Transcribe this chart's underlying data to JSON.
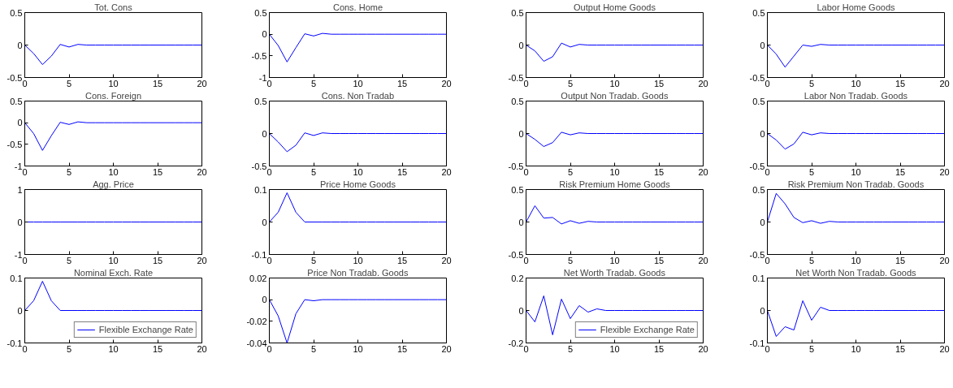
{
  "chart_data": [
    {
      "type": "line",
      "title": "Tot. Cons",
      "x": [
        0,
        1,
        2,
        3,
        4,
        5,
        6,
        7,
        8,
        9,
        10,
        11,
        12,
        13,
        14,
        15,
        16,
        17,
        18,
        19,
        20
      ],
      "xlim": [
        0,
        20
      ],
      "xticks": [
        0,
        5,
        10,
        15,
        20
      ],
      "ylim": [
        -0.5,
        0.5
      ],
      "yticks": [
        -0.5,
        0,
        0.5
      ],
      "series": [
        {
          "color": "#0000ff",
          "values": [
            0,
            -0.13,
            -0.3,
            -0.17,
            0.01,
            -0.03,
            0.01,
            0,
            0,
            0,
            0,
            0,
            0,
            0,
            0,
            0,
            0,
            0,
            0,
            0,
            0
          ]
        }
      ]
    },
    {
      "type": "line",
      "title": "Cons. Home",
      "x": [
        0,
        1,
        2,
        3,
        4,
        5,
        6,
        7,
        8,
        9,
        10,
        11,
        12,
        13,
        14,
        15,
        16,
        17,
        18,
        19,
        20
      ],
      "xlim": [
        0,
        20
      ],
      "xticks": [
        0,
        5,
        10,
        15,
        20
      ],
      "ylim": [
        -1,
        0.5
      ],
      "yticks": [
        -1,
        -0.5,
        0,
        0.5
      ],
      "series": [
        {
          "color": "#0000ff",
          "values": [
            0,
            -0.26,
            -0.64,
            -0.31,
            0.01,
            -0.04,
            0.02,
            0,
            0,
            0,
            0,
            0,
            0,
            0,
            0,
            0,
            0,
            0,
            0,
            0,
            0
          ]
        }
      ]
    },
    {
      "type": "line",
      "title": "Output Home Goods",
      "x": [
        0,
        1,
        2,
        3,
        4,
        5,
        6,
        7,
        8,
        9,
        10,
        11,
        12,
        13,
        14,
        15,
        16,
        17,
        18,
        19,
        20
      ],
      "xlim": [
        0,
        20
      ],
      "xticks": [
        0,
        5,
        10,
        15,
        20
      ],
      "ylim": [
        -0.5,
        0.5
      ],
      "yticks": [
        -0.5,
        0,
        0.5
      ],
      "series": [
        {
          "color": "#0000ff",
          "values": [
            0,
            -0.09,
            -0.25,
            -0.18,
            0.03,
            -0.03,
            0.01,
            0,
            0,
            0,
            0,
            0,
            0,
            0,
            0,
            0,
            0,
            0,
            0,
            0,
            0
          ]
        }
      ]
    },
    {
      "type": "line",
      "title": "Labor Home Goods",
      "x": [
        0,
        1,
        2,
        3,
        4,
        5,
        6,
        7,
        8,
        9,
        10,
        11,
        12,
        13,
        14,
        15,
        16,
        17,
        18,
        19,
        20
      ],
      "xlim": [
        0,
        20
      ],
      "xticks": [
        0,
        5,
        10,
        15,
        20
      ],
      "ylim": [
        -0.5,
        0.5
      ],
      "yticks": [
        -0.5,
        0,
        0.5
      ],
      "series": [
        {
          "color": "#0000ff",
          "values": [
            0,
            -0.14,
            -0.34,
            -0.17,
            0,
            -0.02,
            0.01,
            0,
            0,
            0,
            0,
            0,
            0,
            0,
            0,
            0,
            0,
            0,
            0,
            0,
            0
          ]
        }
      ]
    },
    {
      "type": "line",
      "title": "Cons. Foreign",
      "x": [
        0,
        1,
        2,
        3,
        4,
        5,
        6,
        7,
        8,
        9,
        10,
        11,
        12,
        13,
        14,
        15,
        16,
        17,
        18,
        19,
        20
      ],
      "xlim": [
        0,
        20
      ],
      "xticks": [
        0,
        5,
        10,
        15,
        20
      ],
      "ylim": [
        -1,
        0.5
      ],
      "yticks": [
        -1,
        -0.5,
        0,
        0.5
      ],
      "series": [
        {
          "color": "#0000ff",
          "values": [
            0,
            -0.25,
            -0.64,
            -0.3,
            0.01,
            -0.04,
            0.02,
            0,
            0,
            0,
            0,
            0,
            0,
            0,
            0,
            0,
            0,
            0,
            0,
            0,
            0
          ]
        }
      ]
    },
    {
      "type": "line",
      "title": "Cons. Non Tradab",
      "x": [
        0,
        1,
        2,
        3,
        4,
        5,
        6,
        7,
        8,
        9,
        10,
        11,
        12,
        13,
        14,
        15,
        16,
        17,
        18,
        19,
        20
      ],
      "xlim": [
        0,
        20
      ],
      "xticks": [
        0,
        5,
        10,
        15,
        20
      ],
      "ylim": [
        -0.5,
        0.5
      ],
      "yticks": [
        -0.5,
        0,
        0.5
      ],
      "series": [
        {
          "color": "#0000ff",
          "values": [
            0,
            -0.13,
            -0.28,
            -0.18,
            0.01,
            -0.03,
            0.01,
            0,
            0,
            0,
            0,
            0,
            0,
            0,
            0,
            0,
            0,
            0,
            0,
            0,
            0
          ]
        }
      ]
    },
    {
      "type": "line",
      "title": "Output Non Tradab. Goods",
      "x": [
        0,
        1,
        2,
        3,
        4,
        5,
        6,
        7,
        8,
        9,
        10,
        11,
        12,
        13,
        14,
        15,
        16,
        17,
        18,
        19,
        20
      ],
      "xlim": [
        0,
        20
      ],
      "xticks": [
        0,
        5,
        10,
        15,
        20
      ],
      "ylim": [
        -0.5,
        0.5
      ],
      "yticks": [
        -0.5,
        0,
        0.5
      ],
      "series": [
        {
          "color": "#0000ff",
          "values": [
            0,
            -0.09,
            -0.2,
            -0.14,
            0.02,
            -0.02,
            0.01,
            0,
            0,
            0,
            0,
            0,
            0,
            0,
            0,
            0,
            0,
            0,
            0,
            0,
            0
          ]
        }
      ]
    },
    {
      "type": "line",
      "title": "Labor Non Tradab. Goods",
      "x": [
        0,
        1,
        2,
        3,
        4,
        5,
        6,
        7,
        8,
        9,
        10,
        11,
        12,
        13,
        14,
        15,
        16,
        17,
        18,
        19,
        20
      ],
      "xlim": [
        0,
        20
      ],
      "xticks": [
        0,
        5,
        10,
        15,
        20
      ],
      "ylim": [
        -0.5,
        0.5
      ],
      "yticks": [
        -0.5,
        0,
        0.5
      ],
      "series": [
        {
          "color": "#0000ff",
          "values": [
            0,
            -0.1,
            -0.24,
            -0.16,
            0.02,
            -0.02,
            0.01,
            0,
            0,
            0,
            0,
            0,
            0,
            0,
            0,
            0,
            0,
            0,
            0,
            0,
            0
          ]
        }
      ]
    },
    {
      "type": "line",
      "title": "Agg. Price",
      "x": [
        0,
        1,
        2,
        3,
        4,
        5,
        6,
        7,
        8,
        9,
        10,
        11,
        12,
        13,
        14,
        15,
        16,
        17,
        18,
        19,
        20
      ],
      "xlim": [
        0,
        20
      ],
      "xticks": [
        0,
        5,
        10,
        15,
        20
      ],
      "ylim": [
        -1,
        1
      ],
      "yticks": [
        -1,
        0,
        1
      ],
      "series": [
        {
          "color": "#0000ff",
          "values": [
            0,
            0,
            0,
            0,
            0,
            0,
            0,
            0,
            0,
            0,
            0,
            0,
            0,
            0,
            0,
            0,
            0,
            0,
            0,
            0,
            0
          ]
        }
      ]
    },
    {
      "type": "line",
      "title": "Price Home Goods",
      "x": [
        0,
        1,
        2,
        3,
        4,
        5,
        6,
        7,
        8,
        9,
        10,
        11,
        12,
        13,
        14,
        15,
        16,
        17,
        18,
        19,
        20
      ],
      "xlim": [
        0,
        20
      ],
      "xticks": [
        0,
        5,
        10,
        15,
        20
      ],
      "ylim": [
        -0.1,
        0.1
      ],
      "yticks": [
        -0.1,
        0,
        0.1
      ],
      "series": [
        {
          "color": "#0000ff",
          "values": [
            0,
            0.03,
            0.09,
            0.03,
            0,
            0,
            0,
            0,
            0,
            0,
            0,
            0,
            0,
            0,
            0,
            0,
            0,
            0,
            0,
            0,
            0
          ]
        }
      ]
    },
    {
      "type": "line",
      "title": "Risk Premium Home Goods",
      "x": [
        0,
        1,
        2,
        3,
        4,
        5,
        6,
        7,
        8,
        9,
        10,
        11,
        12,
        13,
        14,
        15,
        16,
        17,
        18,
        19,
        20
      ],
      "xlim": [
        0,
        20
      ],
      "xticks": [
        0,
        5,
        10,
        15,
        20
      ],
      "ylim": [
        -0.5,
        0.5
      ],
      "yticks": [
        -0.5,
        0,
        0.5
      ],
      "series": [
        {
          "color": "#0000ff",
          "values": [
            0,
            0.25,
            0.06,
            0.07,
            -0.03,
            0.02,
            -0.02,
            0.01,
            0,
            0,
            0,
            0,
            0,
            0,
            0,
            0,
            0,
            0,
            0,
            0,
            0
          ]
        }
      ]
    },
    {
      "type": "line",
      "title": "Risk Premium Non Tradab. Goods",
      "x": [
        0,
        1,
        2,
        3,
        4,
        5,
        6,
        7,
        8,
        9,
        10,
        11,
        12,
        13,
        14,
        15,
        16,
        17,
        18,
        19,
        20
      ],
      "xlim": [
        0,
        20
      ],
      "xticks": [
        0,
        5,
        10,
        15,
        20
      ],
      "ylim": [
        -0.5,
        0.5
      ],
      "yticks": [
        -0.5,
        0,
        0.5
      ],
      "series": [
        {
          "color": "#0000ff",
          "values": [
            0,
            0.44,
            0.28,
            0.07,
            -0.01,
            0.02,
            -0.02,
            0.01,
            0,
            0,
            0,
            0,
            0,
            0,
            0,
            0,
            0,
            0,
            0,
            0,
            0
          ]
        }
      ]
    },
    {
      "type": "line",
      "title": "Nominal Exch. Rate",
      "x": [
        0,
        1,
        2,
        3,
        4,
        5,
        6,
        7,
        8,
        9,
        10,
        11,
        12,
        13,
        14,
        15,
        16,
        17,
        18,
        19,
        20
      ],
      "xlim": [
        0,
        20
      ],
      "xticks": [
        0,
        5,
        10,
        15,
        20
      ],
      "ylim": [
        -0.1,
        0.1
      ],
      "yticks": [
        -0.1,
        0,
        0.1
      ],
      "legend": "bottom right",
      "series": [
        {
          "name": "Flexible Exchange Rate",
          "color": "#0000ff",
          "values": [
            0,
            0.03,
            0.09,
            0.03,
            0,
            0,
            0,
            0,
            0,
            0,
            0,
            0,
            0,
            0,
            0,
            0,
            0,
            0,
            0,
            0,
            0
          ]
        }
      ]
    },
    {
      "type": "line",
      "title": "Price Non Tradab. Goods",
      "x": [
        0,
        1,
        2,
        3,
        4,
        5,
        6,
        7,
        8,
        9,
        10,
        11,
        12,
        13,
        14,
        15,
        16,
        17,
        18,
        19,
        20
      ],
      "xlim": [
        0,
        20
      ],
      "xticks": [
        0,
        5,
        10,
        15,
        20
      ],
      "ylim": [
        -0.04,
        0.02
      ],
      "yticks": [
        -0.04,
        -0.02,
        0,
        0.02
      ],
      "series": [
        {
          "color": "#0000ff",
          "values": [
            0,
            -0.015,
            -0.04,
            -0.013,
            0,
            -0.001,
            0,
            0,
            0,
            0,
            0,
            0,
            0,
            0,
            0,
            0,
            0,
            0,
            0,
            0,
            0
          ]
        }
      ]
    },
    {
      "type": "line",
      "title": "Net Worth Tradab. Goods",
      "x": [
        0,
        1,
        2,
        3,
        4,
        5,
        6,
        7,
        8,
        9,
        10,
        11,
        12,
        13,
        14,
        15,
        16,
        17,
        18,
        19,
        20
      ],
      "xlim": [
        0,
        20
      ],
      "xticks": [
        0,
        5,
        10,
        15,
        20
      ],
      "ylim": [
        -0.2,
        0.2
      ],
      "yticks": [
        -0.2,
        0,
        0.2
      ],
      "legend": "bottom right",
      "series": [
        {
          "name": "Flexible Exchange Rate",
          "color": "#0000ff",
          "values": [
            0,
            -0.07,
            0.09,
            -0.15,
            0.07,
            -0.05,
            0.03,
            -0.01,
            0.01,
            0,
            0,
            0,
            0,
            0,
            0,
            0,
            0,
            0,
            0,
            0,
            0
          ]
        }
      ]
    },
    {
      "type": "line",
      "title": "Net Worth Non Tradab. Goods",
      "x": [
        0,
        1,
        2,
        3,
        4,
        5,
        6,
        7,
        8,
        9,
        10,
        11,
        12,
        13,
        14,
        15,
        16,
        17,
        18,
        19,
        20
      ],
      "xlim": [
        0,
        20
      ],
      "xticks": [
        0,
        5,
        10,
        15,
        20
      ],
      "ylim": [
        -0.1,
        0.1
      ],
      "yticks": [
        -0.1,
        0,
        0.1
      ],
      "series": [
        {
          "color": "#0000ff",
          "values": [
            0,
            -0.08,
            -0.05,
            -0.06,
            0.03,
            -0.03,
            0.01,
            0,
            0,
            0,
            0,
            0,
            0,
            0,
            0,
            0,
            0,
            0,
            0,
            0,
            0
          ]
        }
      ]
    }
  ]
}
